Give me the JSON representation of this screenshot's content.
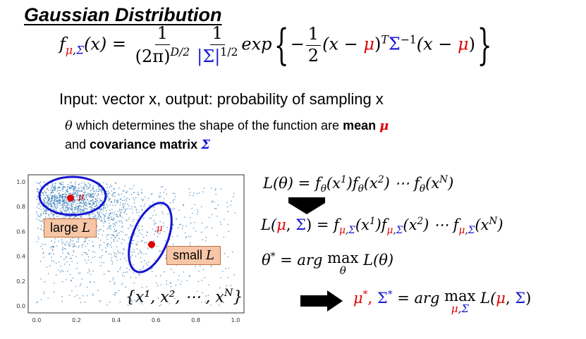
{
  "title": "Gaussian Distribution",
  "formula": {
    "f": "f",
    "subscript": [
      "μ",
      ",",
      "Σ"
    ],
    "arg": "(x) =",
    "frac1_num": "1",
    "frac1_den": "(2π)",
    "frac1_den_exp": "D/2",
    "frac2_num": "1",
    "frac2_den": "|Σ|",
    "frac2_den_exp": "1/2",
    "exp": "exp",
    "minus": "−",
    "frac3_num": "1",
    "frac3_den": "2",
    "term1": "(x − ",
    "term1_mu": "μ",
    "term1_end": ")",
    "T": "T",
    "sigma": "Σ",
    "inv": "−1",
    "term2": "(x − ",
    "term2_mu": "μ",
    "term2_end": ")"
  },
  "input_line": "Input: vector x, output: probability of sampling x",
  "theta_line": {
    "theta": "θ",
    "part1": " which determines the shape of the function are ",
    "mean": "mean ",
    "mu": "μ",
    "part2": "and ",
    "cov": "covariance matrix ",
    "sigma": "Σ"
  },
  "scatter": {
    "x_ticks": [
      "0.0",
      "0.2",
      "0.4",
      "0.6",
      "0.8",
      "1.0"
    ],
    "y_ticks": [
      "0.0",
      "0.2",
      "0.4",
      "0.6",
      "0.8",
      "1.0"
    ],
    "point_color": "#2f78b4",
    "mu_label": "μ",
    "large_label": "large ",
    "small_label": "small ",
    "L": "L",
    "set_label": "{x¹, x², ⋯ , x",
    "set_N": "N",
    "set_end": "}"
  },
  "equations": {
    "eq1": "L(θ) = f",
    "eq1_rest": "(x¹)f",
    "eq1_rest2": "(x²) ⋯ f",
    "eq1_rest3": "(xᴺ)",
    "eq1_sub": "θ",
    "eq3_lhs": "θ* = arg max L(θ)",
    "eq3_sub": "θ",
    "eq4_lhs": "μ*, Σ*",
    "eq4_rhs": " = arg max L(μ, Σ)",
    "eq4_sub": "μ,Σ"
  }
}
